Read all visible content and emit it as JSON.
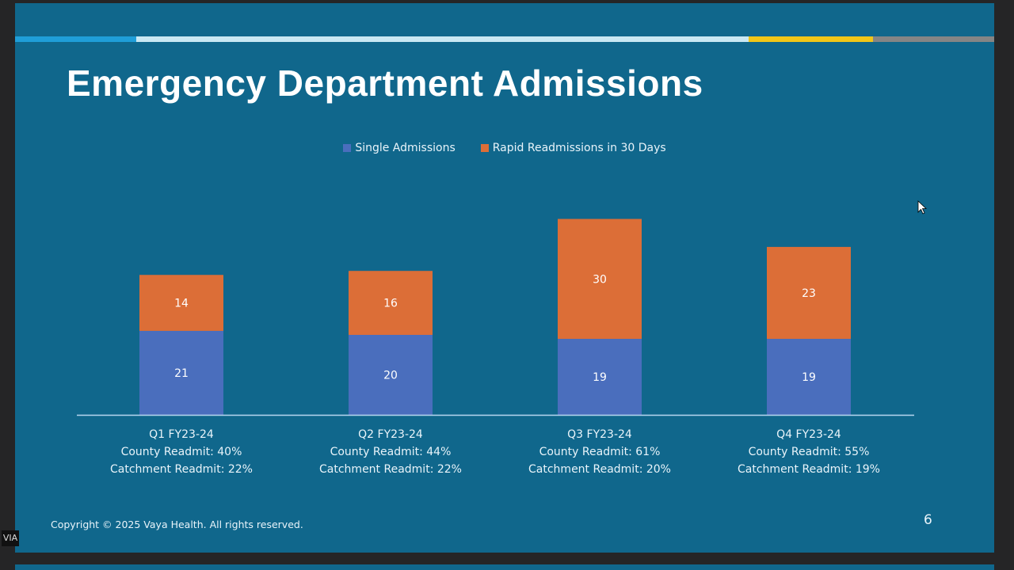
{
  "slide": {
    "title": "Emergency Department Admissions",
    "copyright": "Copyright © 2025 Vaya Health. All rights reserved.",
    "page_number": "6",
    "corner_tag": "VIA",
    "accent_stripe_colors": [
      "#1f9ed8",
      "#c9e8f3",
      "#f1c617",
      "#858585"
    ]
  },
  "chart_data": {
    "type": "bar",
    "stacked": true,
    "title": "",
    "xlabel": "",
    "ylabel": "",
    "ylim": [
      0,
      55
    ],
    "grid": false,
    "legend_position": "top-center",
    "categories": [
      "Q1 FY23-24",
      "Q2 FY23-24",
      "Q3 FY23-24",
      "Q4 FY23-24"
    ],
    "category_sublabels": [
      [
        "County Readmit: 40%",
        "Catchment Readmit: 22%"
      ],
      [
        "County Readmit: 44%",
        "Catchment Readmit: 22%"
      ],
      [
        "County Readmit: 61%",
        "Catchment Readmit: 20%"
      ],
      [
        "County Readmit: 55%",
        "Catchment Readmit: 19%"
      ]
    ],
    "series": [
      {
        "name": "Single Admissions",
        "color": "#4a6ebd",
        "values": [
          21,
          20,
          19,
          19
        ]
      },
      {
        "name": "Rapid Readmissions in 30 Days",
        "color": "#dc6e37",
        "values": [
          14,
          16,
          30,
          23
        ]
      }
    ]
  }
}
